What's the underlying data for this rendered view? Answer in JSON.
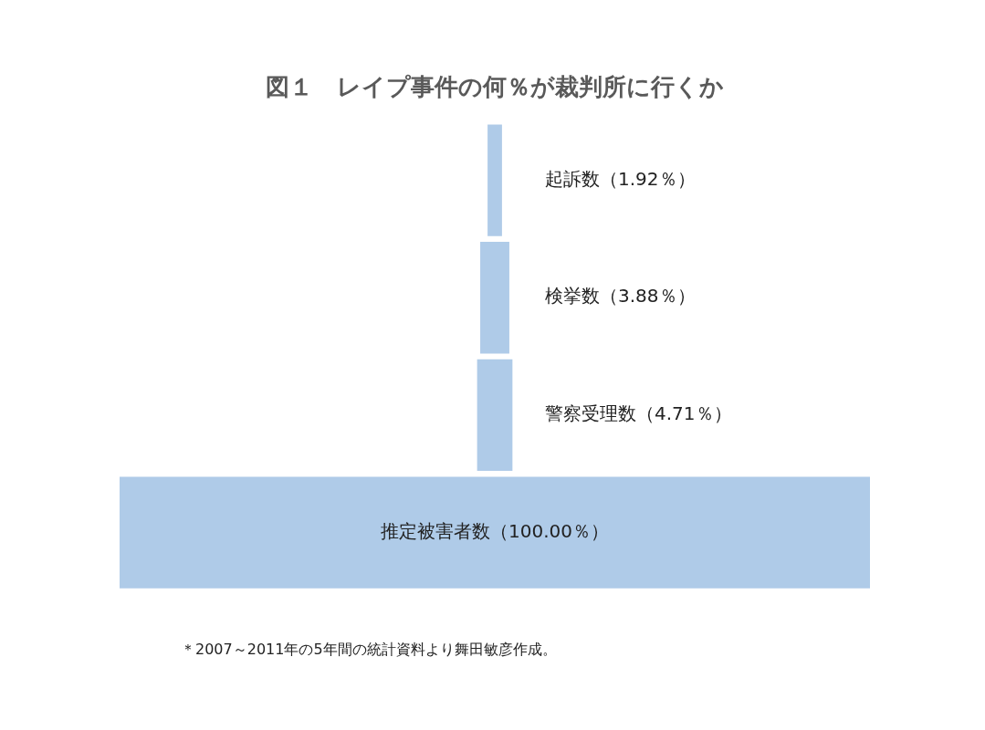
{
  "chart_data": {
    "type": "other",
    "title": "図１　レイプ事件の何％が裁判所に行くか",
    "categories": [
      "起訴数",
      "検挙数",
      "警察受理数",
      "推定被害者数"
    ],
    "values": [
      1.92,
      3.88,
      4.71,
      100
    ],
    "value_labels": [
      "（1.92％）",
      "（3.88％）",
      "（4.71％）",
      "（100.00％）"
    ],
    "color": "#afcbe8",
    "annotations": [
      "＊2007～2011年の5年間の統計資料より舞田敏彦作成。"
    ]
  }
}
